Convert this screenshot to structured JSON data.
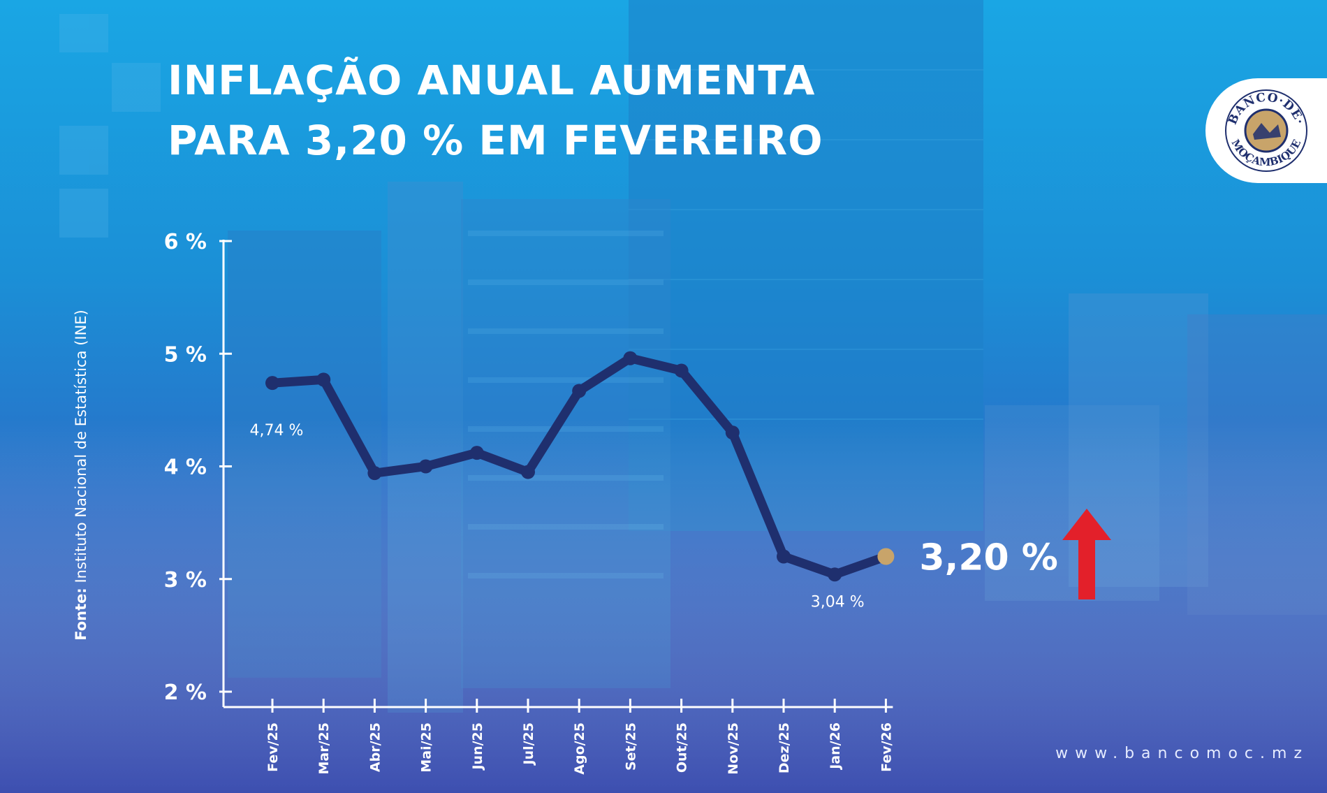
{
  "title": {
    "line1": "INFLAÇÃO ANUAL AUMENTA",
    "line2": "PARA 3,20 % EM FEVEREIRO"
  },
  "logo": {
    "text_top": "BANCO·DE·",
    "text_bottom": "MOÇAMBIQUE",
    "icon": "banco-de-mocambique-seal"
  },
  "source": {
    "label": "Fonte:",
    "text": "Instituto Nacional de Estatística (INE)"
  },
  "website": "www.bancomoc.mz",
  "colors": {
    "line": "#1f2f6e",
    "highlight_point": "#c8a46a",
    "arrow": "#e3202a",
    "axis": "#ffffff"
  },
  "chart_data": {
    "type": "line",
    "categories": [
      "Fev/25",
      "Mar/25",
      "Abr/25",
      "Mai/25",
      "Jun/25",
      "Jul/25",
      "Ago/25",
      "Set/25",
      "Out/25",
      "Nov/25",
      "Dez/25",
      "Jan/26",
      "Fev/26"
    ],
    "series": [
      {
        "values": [
          4.74,
          4.77,
          3.94,
          4.0,
          4.12,
          3.95,
          4.67,
          4.96,
          4.85,
          4.3,
          3.2,
          3.04,
          3.2
        ]
      }
    ],
    "yticks": [
      "6 %",
      "5 %",
      "4 %",
      "3 %",
      "2 %"
    ],
    "ytick_values": [
      6,
      5,
      4,
      3,
      2
    ],
    "ylim": [
      2,
      6
    ],
    "annotations": [
      {
        "index": 0,
        "text": "4,74 %"
      },
      {
        "index": 11,
        "text": "3,04 %"
      }
    ],
    "highlight": {
      "index": 12,
      "text": "3,20 %",
      "trend": "up-arrow-icon"
    },
    "grid": false,
    "legend": "none"
  }
}
